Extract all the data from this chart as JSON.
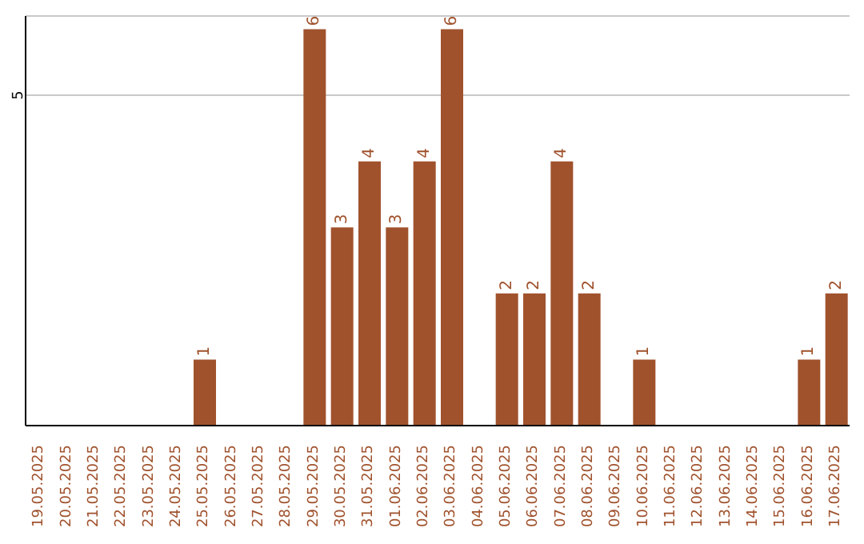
{
  "chart_data": {
    "type": "bar",
    "categories": [
      "19.05.2025",
      "20.05.2025",
      "21.05.2025",
      "22.05.2025",
      "23.05.2025",
      "24.05.2025",
      "25.05.2025",
      "26.05.2025",
      "27.05.2025",
      "28.05.2025",
      "29.05.2025",
      "30.05.2025",
      "31.05.2025",
      "01.06.2025",
      "02.06.2025",
      "03.06.2025",
      "04.06.2025",
      "05.06.2025",
      "06.06.2025",
      "07.06.2025",
      "08.06.2025",
      "09.06.2025",
      "10.06.2025",
      "11.06.2025",
      "12.06.2025",
      "13.06.2025",
      "14.06.2025",
      "15.06.2025",
      "16.06.2025",
      "17.06.2025"
    ],
    "values": [
      0,
      0,
      0,
      0,
      0,
      0,
      1,
      0,
      0,
      0,
      6,
      3,
      4,
      3,
      4,
      6,
      0,
      2,
      2,
      4,
      2,
      0,
      1,
      0,
      0,
      0,
      0,
      0,
      1,
      2
    ],
    "value_labels": [
      null,
      null,
      null,
      null,
      null,
      null,
      "1",
      null,
      null,
      null,
      "6",
      "3",
      "4",
      "3",
      "4",
      "6",
      null,
      "2",
      "2",
      "4",
      "2",
      null,
      "1",
      null,
      null,
      null,
      null,
      null,
      "1",
      "2"
    ],
    "color": "#a0522d",
    "ylim": [
      0,
      6.2
    ],
    "yticks": [
      5
    ],
    "grid": "y"
  }
}
